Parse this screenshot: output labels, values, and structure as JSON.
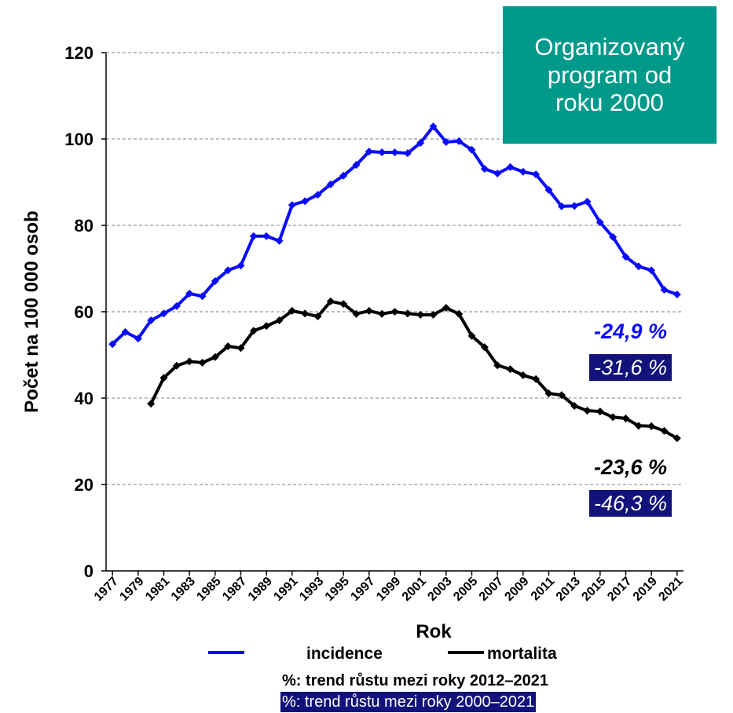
{
  "chart_data": {
    "type": "line",
    "y_label": "Počet na 100 000 osob",
    "x_label": "Rok",
    "x": [
      1977,
      1978,
      1979,
      1980,
      1981,
      1982,
      1983,
      1984,
      1985,
      1986,
      1987,
      1988,
      1989,
      1990,
      1991,
      1992,
      1993,
      1994,
      1995,
      1996,
      1997,
      1998,
      1999,
      2000,
      2001,
      2002,
      2003,
      2004,
      2005,
      2006,
      2007,
      2008,
      2009,
      2010,
      2011,
      2012,
      2013,
      2014,
      2015,
      2016,
      2017,
      2018,
      2019,
      2020,
      2021
    ],
    "series": [
      {
        "name": "incidence",
        "color": "#0a0aff",
        "values": [
          52.5,
          55.3,
          53.8,
          58,
          59.6,
          61.3,
          64.2,
          63.6,
          67.1,
          69.6,
          70.7,
          77.5,
          77.5,
          76.4,
          84.7,
          85.6,
          87.1,
          89.5,
          91.5,
          94,
          97.1,
          96.9,
          96.9,
          96.7,
          99.1,
          102.9,
          99.3,
          99.5,
          97.5,
          93.1,
          92,
          93.5,
          92.4,
          91.8,
          88.2,
          84.4,
          84.5,
          85.5,
          80.7,
          77.3,
          72.7,
          70.5,
          69.6,
          65.1,
          64
        ]
      },
      {
        "name": "mortalita",
        "color": "#000000",
        "values": [
          null,
          null,
          null,
          38.7,
          44.7,
          47.5,
          48.5,
          48.2,
          49.5,
          52,
          51.6,
          55.6,
          56.7,
          58,
          60.2,
          59.6,
          58.9,
          62.4,
          61.8,
          59.5,
          60.2,
          59.5,
          60,
          59.6,
          59.3,
          59.3,
          60.9,
          59.5,
          54.4,
          51.8,
          47.6,
          46.7,
          45.3,
          44.4,
          41.1,
          40.7,
          38.2,
          37.1,
          36.9,
          35.6,
          35.3,
          33.6,
          33.5,
          32.4,
          30.7
        ]
      }
    ],
    "xlim": [
      1976.5,
      2021.5
    ],
    "xticks": [
      1977,
      1979,
      1981,
      1983,
      1985,
      1987,
      1989,
      1991,
      1993,
      1995,
      1997,
      1999,
      2001,
      2003,
      2005,
      2007,
      2009,
      2011,
      2013,
      2015,
      2017,
      2019,
      2021
    ],
    "ylim": [
      0,
      120
    ],
    "yticks": [
      0,
      20,
      40,
      60,
      80,
      100,
      120
    ],
    "grid": true,
    "box": {
      "text": "Organizovaný program od roku 2000",
      "color": "#00998a"
    },
    "annotations": [
      {
        "text": "-24,9 %",
        "color": "#0a0aff"
      },
      {
        "text": "-31,6 %",
        "color": "#ffffff",
        "background": "#12127a"
      },
      {
        "text": "-23,6 %",
        "color": "#000000"
      },
      {
        "text": "-46,3 %",
        "color": "#ffffff",
        "background": "#12127a"
      }
    ],
    "notes": [
      {
        "text": "%: trend růstu mezi roky 2012–2021",
        "color": "#000000"
      },
      {
        "text": "%: trend růstu mezi roky 2000–2021",
        "color": "#ffffff",
        "background": "#12127a"
      }
    ]
  }
}
